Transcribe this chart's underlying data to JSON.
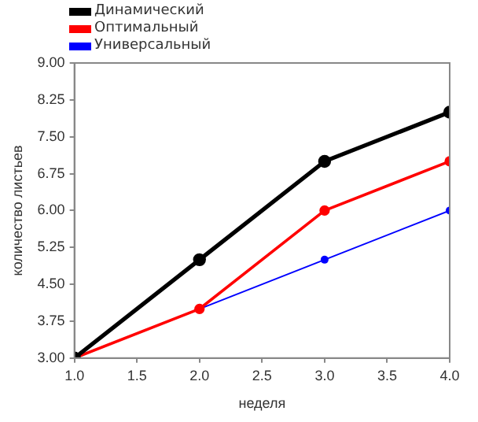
{
  "chart_data": {
    "type": "line",
    "xlabel": "неделя",
    "ylabel": "количество листьев",
    "x": [
      1,
      2,
      3,
      4
    ],
    "series": [
      {
        "name": "Динамический",
        "color": "#000000",
        "values": [
          3,
          5,
          7,
          8
        ]
      },
      {
        "name": "Оптимальный",
        "color": "#ff0000",
        "values": [
          3,
          4,
          6,
          7
        ]
      },
      {
        "name": "Универсальный",
        "color": "#0000ff",
        "values": [
          3,
          4,
          5,
          6
        ]
      }
    ],
    "xlim": [
      1,
      4
    ],
    "xticks": [
      {
        "value": 1,
        "label": "1.0"
      },
      {
        "value": 1.5,
        "label": "1.5"
      },
      {
        "value": 2,
        "label": "2.0"
      },
      {
        "value": 2.5,
        "label": "2.5"
      },
      {
        "value": 3,
        "label": "3.0"
      },
      {
        "value": 3.5,
        "label": "3.5"
      },
      {
        "value": 4,
        "label": "4.0"
      }
    ],
    "ylim": [
      3,
      9
    ],
    "yticks": [
      {
        "value": 3,
        "label": "3.00"
      },
      {
        "value": 3.75,
        "label": "3.75"
      },
      {
        "value": 4.5,
        "label": "4.50"
      },
      {
        "value": 5.25,
        "label": "5.25"
      },
      {
        "value": 6,
        "label": "6.00"
      },
      {
        "value": 6.75,
        "label": "6.75"
      },
      {
        "value": 7.5,
        "label": "7.50"
      },
      {
        "value": 8.25,
        "label": "8.25"
      },
      {
        "value": 9,
        "label": "9.00"
      }
    ],
    "grid": false,
    "legend": "top left",
    "marker": "circle",
    "line_style": "solid"
  }
}
